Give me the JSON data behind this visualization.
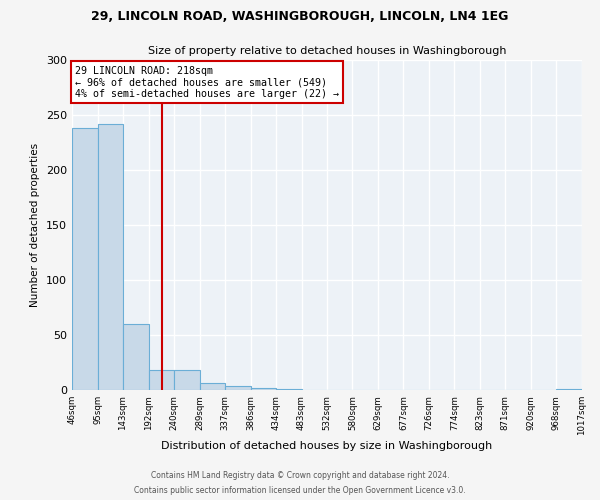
{
  "title1": "29, LINCOLN ROAD, WASHINGBOROUGH, LINCOLN, LN4 1EG",
  "title2": "Size of property relative to detached houses in Washingborough",
  "xlabel": "Distribution of detached houses by size in Washingborough",
  "ylabel": "Number of detached properties",
  "bin_edges": [
    46,
    95,
    143,
    192,
    240,
    289,
    337,
    386,
    434,
    483,
    532,
    580,
    629,
    677,
    726,
    774,
    823,
    871,
    920,
    968,
    1017
  ],
  "bar_heights": [
    238,
    242,
    60,
    18,
    18,
    6,
    4,
    2,
    1,
    0,
    0,
    0,
    0,
    0,
    0,
    0,
    0,
    0,
    0,
    1
  ],
  "bar_color": "#c8d9e8",
  "bar_edge_color": "#6baed6",
  "property_line_x": 218,
  "property_line_color": "#cc0000",
  "ylim": [
    0,
    300
  ],
  "yticks": [
    0,
    50,
    100,
    150,
    200,
    250,
    300
  ],
  "annotation_text": "29 LINCOLN ROAD: 218sqm\n← 96% of detached houses are smaller (549)\n4% of semi-detached houses are larger (22) →",
  "annotation_box_color": "#ffffff",
  "annotation_box_edge_color": "#cc0000",
  "footer1": "Contains HM Land Registry data © Crown copyright and database right 2024.",
  "footer2": "Contains public sector information licensed under the Open Government Licence v3.0.",
  "background_color": "#edf2f7",
  "grid_color": "#ffffff",
  "tick_labels": [
    "46sqm",
    "95sqm",
    "143sqm",
    "192sqm",
    "240sqm",
    "289sqm",
    "337sqm",
    "386sqm",
    "434sqm",
    "483sqm",
    "532sqm",
    "580sqm",
    "629sqm",
    "677sqm",
    "726sqm",
    "774sqm",
    "823sqm",
    "871sqm",
    "920sqm",
    "968sqm",
    "1017sqm"
  ],
  "fig_facecolor": "#f5f5f5"
}
